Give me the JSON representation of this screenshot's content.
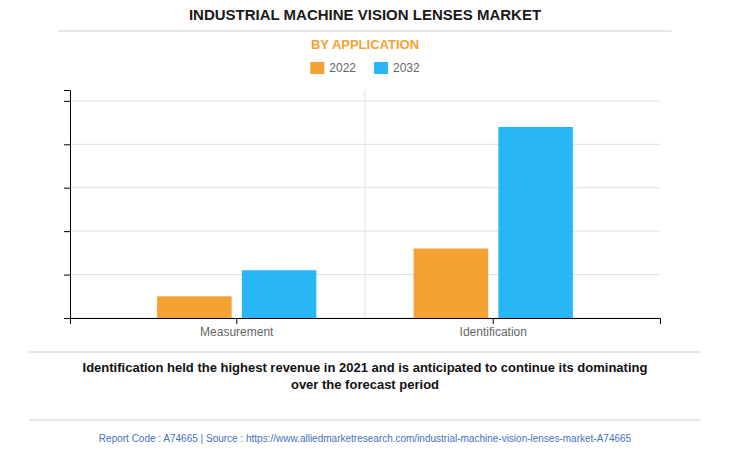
{
  "chart_data": {
    "type": "bar",
    "title": "INDUSTRIAL MACHINE VISION LENSES MARKET",
    "subtitle": "BY APPLICATION",
    "categories": [
      "Measurement",
      "Identification"
    ],
    "series": [
      {
        "name": "2022",
        "color": "#F5A235",
        "values": [
          1.0,
          3.2
        ]
      },
      {
        "name": "2032",
        "color": "#29B6F6",
        "values": [
          2.2,
          8.8
        ]
      }
    ],
    "ylim": [
      0,
      10.5
    ],
    "yticks": [
      0,
      2,
      4,
      6,
      8,
      10
    ],
    "grid": true,
    "legend": "top",
    "tick_labels": "x",
    "annotations": [
      "Identification held the highest revenue in 2021 and is anticipated to continue its dominating\nover the forecast period",
      "Report Code : A74665  |  Source : https://www.alliedmarketresearch.com/industrial-machine-vision-lenses-market-A74665"
    ]
  }
}
